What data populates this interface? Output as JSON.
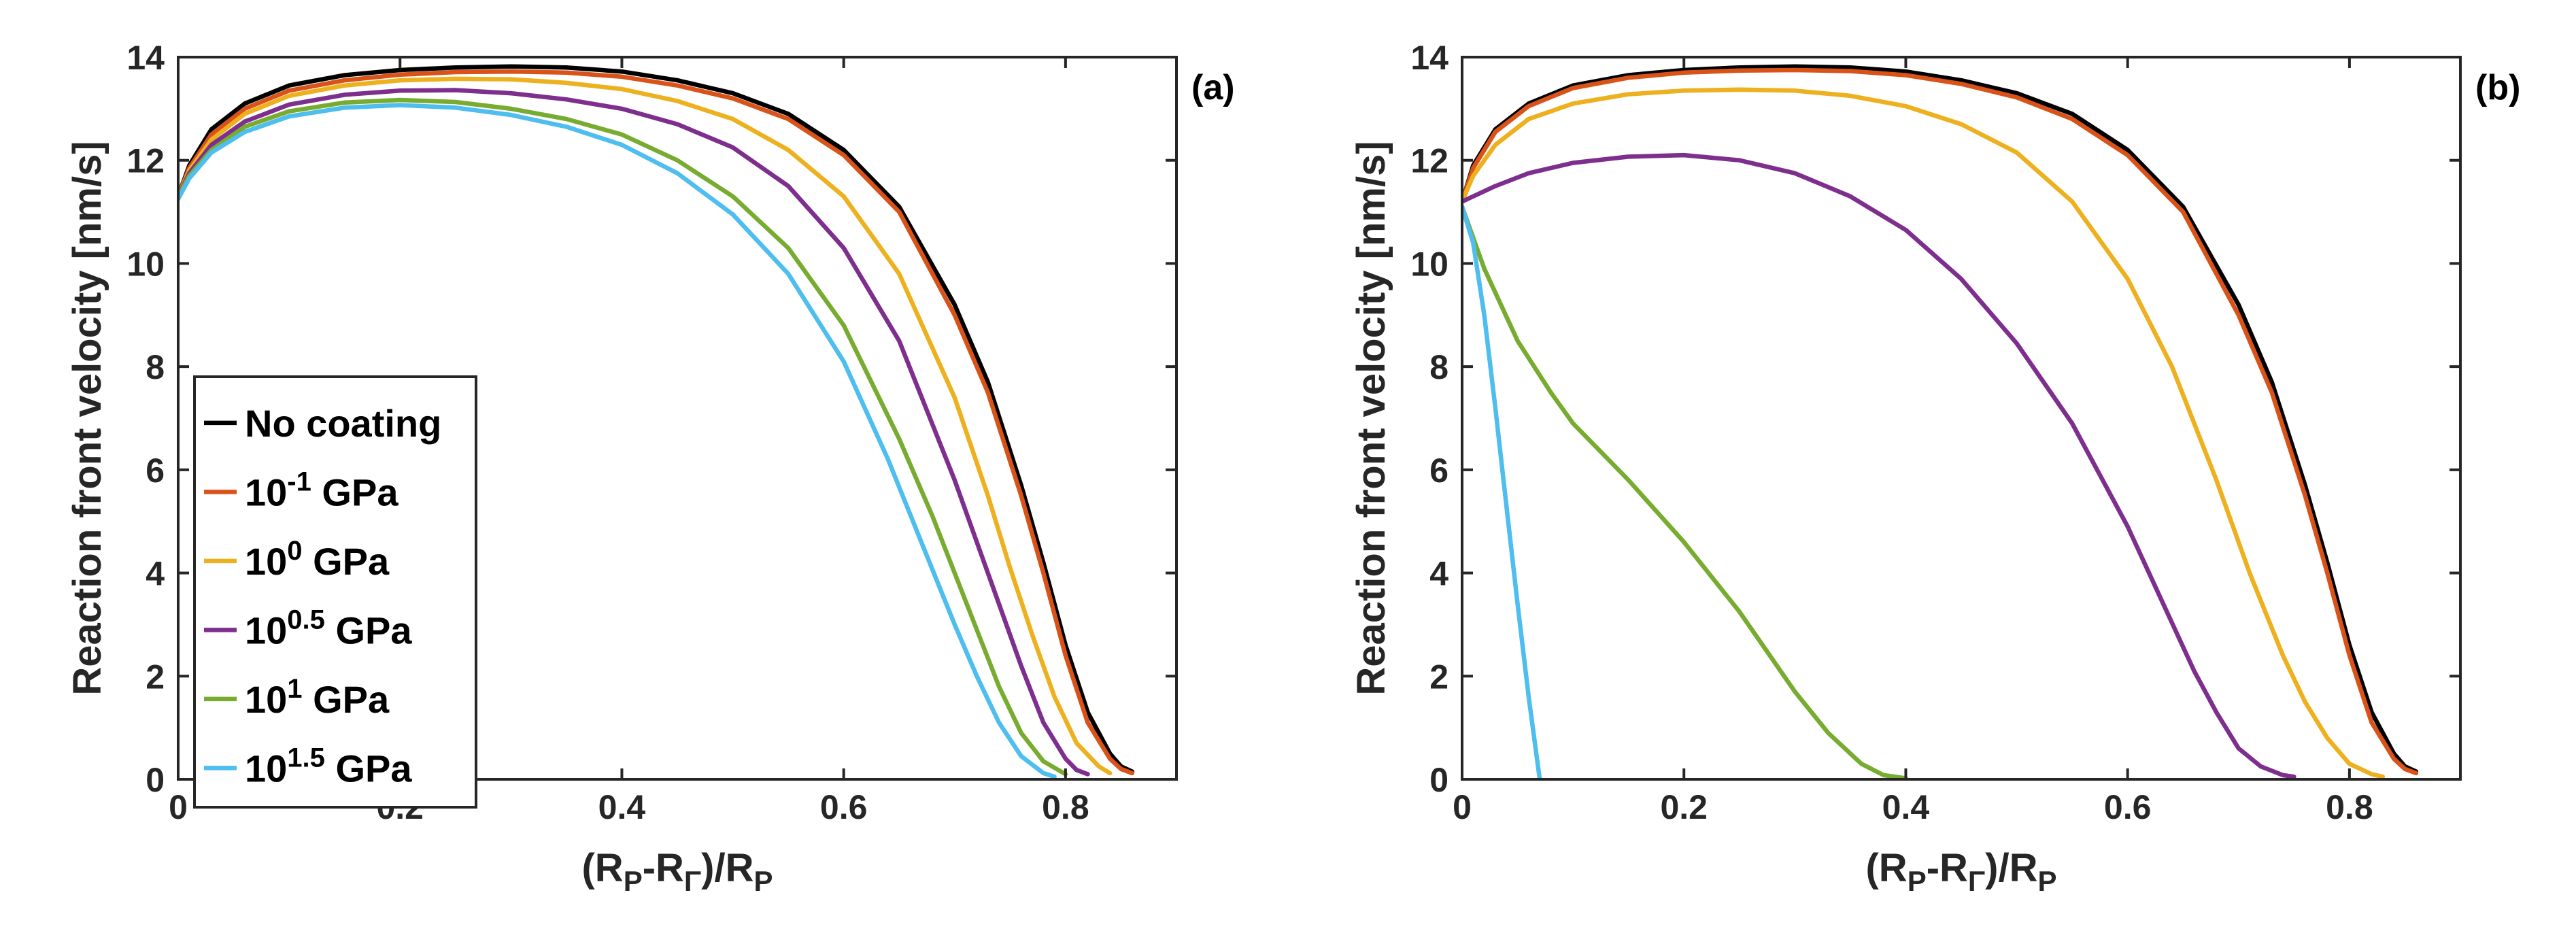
{
  "chart_data": [
    {
      "type": "line",
      "panel_label": "(a)",
      "xlabel": {
        "base": "(R",
        "sub1": "P",
        "mid": "-R",
        "sub2": "Γ",
        "mid2": ")/R",
        "sub3": "P"
      },
      "ylabel": "Reaction front velocity [nm/s]",
      "xlim": [
        0,
        0.9
      ],
      "ylim": [
        0,
        14
      ],
      "xticks": [
        0,
        0.2,
        0.4,
        0.6,
        0.8
      ],
      "xtick_labels": [
        "0",
        "0.2",
        "0.4",
        "0.6",
        "0.8"
      ],
      "yticks": [
        0,
        2,
        4,
        6,
        8,
        10,
        12,
        14
      ],
      "ytick_labels": [
        "0",
        "2",
        "4",
        "6",
        "8",
        "10",
        "12",
        "14"
      ],
      "legend_position": "bottom-left",
      "series": [
        {
          "name": "No coating",
          "label_base": "No coating",
          "label_sup": "",
          "label_unit": "",
          "color": "#000000",
          "x": [
            0,
            0.01,
            0.03,
            0.06,
            0.1,
            0.15,
            0.2,
            0.25,
            0.3,
            0.35,
            0.4,
            0.45,
            0.5,
            0.55,
            0.6,
            0.65,
            0.7,
            0.73,
            0.76,
            0.78,
            0.8,
            0.82,
            0.84,
            0.85,
            0.86
          ],
          "y": [
            11.3,
            11.9,
            12.6,
            13.1,
            13.45,
            13.65,
            13.75,
            13.8,
            13.82,
            13.8,
            13.72,
            13.55,
            13.3,
            12.9,
            12.2,
            11.1,
            9.2,
            7.7,
            5.7,
            4.2,
            2.6,
            1.3,
            0.5,
            0.25,
            0.15
          ]
        },
        {
          "name": "10^-1 GPa",
          "label_base": "10",
          "label_sup": "-1",
          "label_unit": " GPa",
          "color": "#D95319",
          "x": [
            0,
            0.01,
            0.03,
            0.06,
            0.1,
            0.15,
            0.2,
            0.25,
            0.3,
            0.35,
            0.4,
            0.45,
            0.5,
            0.55,
            0.6,
            0.65,
            0.7,
            0.73,
            0.76,
            0.78,
            0.8,
            0.82,
            0.84,
            0.85,
            0.86
          ],
          "y": [
            11.3,
            11.85,
            12.5,
            13.0,
            13.35,
            13.55,
            13.66,
            13.71,
            13.72,
            13.7,
            13.62,
            13.45,
            13.2,
            12.8,
            12.1,
            11.0,
            9.0,
            7.5,
            5.5,
            4.0,
            2.4,
            1.1,
            0.4,
            0.2,
            0.12
          ]
        },
        {
          "name": "10^0 GPa",
          "label_base": "10",
          "label_sup": "0",
          "label_unit": " GPa",
          "color": "#EDB120",
          "x": [
            0,
            0.01,
            0.03,
            0.06,
            0.1,
            0.15,
            0.2,
            0.25,
            0.3,
            0.35,
            0.4,
            0.45,
            0.5,
            0.55,
            0.6,
            0.65,
            0.7,
            0.73,
            0.75,
            0.77,
            0.79,
            0.81,
            0.83,
            0.84
          ],
          "y": [
            11.3,
            11.8,
            12.4,
            12.9,
            13.25,
            13.45,
            13.55,
            13.58,
            13.57,
            13.5,
            13.38,
            13.15,
            12.8,
            12.2,
            11.3,
            9.8,
            7.4,
            5.5,
            4.1,
            2.8,
            1.6,
            0.7,
            0.25,
            0.12
          ]
        },
        {
          "name": "10^0.5 GPa",
          "label_base": "10",
          "label_sup": "0.5",
          "label_unit": " GPa",
          "color": "#7E2F8E",
          "x": [
            0,
            0.01,
            0.03,
            0.06,
            0.1,
            0.15,
            0.2,
            0.25,
            0.3,
            0.35,
            0.4,
            0.45,
            0.5,
            0.55,
            0.6,
            0.65,
            0.7,
            0.72,
            0.74,
            0.76,
            0.78,
            0.8,
            0.81,
            0.82
          ],
          "y": [
            11.3,
            11.75,
            12.3,
            12.75,
            13.08,
            13.27,
            13.35,
            13.36,
            13.3,
            13.18,
            13.0,
            12.7,
            12.25,
            11.5,
            10.3,
            8.5,
            5.8,
            4.6,
            3.4,
            2.2,
            1.1,
            0.4,
            0.18,
            0.1
          ]
        },
        {
          "name": "10^1 GPa",
          "label_base": "10",
          "label_sup": "1",
          "label_unit": " GPa",
          "color": "#77AC30",
          "x": [
            0,
            0.01,
            0.03,
            0.06,
            0.1,
            0.15,
            0.2,
            0.25,
            0.3,
            0.35,
            0.4,
            0.45,
            0.5,
            0.55,
            0.6,
            0.65,
            0.68,
            0.7,
            0.72,
            0.74,
            0.76,
            0.78,
            0.8
          ],
          "y": [
            11.3,
            11.7,
            12.2,
            12.65,
            12.95,
            13.12,
            13.17,
            13.13,
            13.0,
            12.8,
            12.5,
            12.0,
            11.3,
            10.3,
            8.8,
            6.6,
            5.1,
            4.0,
            2.9,
            1.8,
            0.9,
            0.35,
            0.1
          ]
        },
        {
          "name": "10^1.5 GPa",
          "label_base": "10",
          "label_sup": "1.5",
          "label_unit": " GPa",
          "color": "#4DBEEE",
          "x": [
            0,
            0.01,
            0.03,
            0.06,
            0.1,
            0.15,
            0.2,
            0.25,
            0.3,
            0.35,
            0.4,
            0.45,
            0.5,
            0.55,
            0.6,
            0.64,
            0.67,
            0.7,
            0.72,
            0.74,
            0.76,
            0.78,
            0.79
          ],
          "y": [
            11.25,
            11.65,
            12.15,
            12.55,
            12.85,
            13.02,
            13.07,
            13.02,
            12.88,
            12.65,
            12.3,
            11.75,
            10.95,
            9.8,
            8.1,
            6.2,
            4.6,
            3.0,
            2.0,
            1.1,
            0.45,
            0.12,
            0.05
          ]
        }
      ]
    },
    {
      "type": "line",
      "panel_label": "(b)",
      "xlabel": {
        "base": "(R",
        "sub1": "P",
        "mid": "-R",
        "sub2": "Γ",
        "mid2": ")/R",
        "sub3": "P"
      },
      "ylabel": "Reaction front velocity [nm/s]",
      "xlim": [
        0,
        0.9
      ],
      "ylim": [
        0,
        14
      ],
      "xticks": [
        0,
        0.2,
        0.4,
        0.6,
        0.8
      ],
      "xtick_labels": [
        "0",
        "0.2",
        "0.4",
        "0.6",
        "0.8"
      ],
      "yticks": [
        0,
        2,
        4,
        6,
        8,
        10,
        12,
        14
      ],
      "ytick_labels": [
        "0",
        "2",
        "4",
        "6",
        "8",
        "10",
        "12",
        "14"
      ],
      "series": [
        {
          "name": "No coating",
          "color": "#000000",
          "x": [
            0,
            0.01,
            0.03,
            0.06,
            0.1,
            0.15,
            0.2,
            0.25,
            0.3,
            0.35,
            0.4,
            0.45,
            0.5,
            0.55,
            0.6,
            0.65,
            0.7,
            0.73,
            0.76,
            0.78,
            0.8,
            0.82,
            0.84,
            0.85,
            0.86
          ],
          "y": [
            11.2,
            11.9,
            12.6,
            13.1,
            13.45,
            13.65,
            13.75,
            13.8,
            13.82,
            13.8,
            13.72,
            13.55,
            13.3,
            12.9,
            12.2,
            11.1,
            9.2,
            7.7,
            5.7,
            4.2,
            2.6,
            1.3,
            0.5,
            0.25,
            0.15
          ]
        },
        {
          "name": "10^-1 GPa",
          "color": "#D95319",
          "x": [
            0,
            0.01,
            0.03,
            0.06,
            0.1,
            0.15,
            0.2,
            0.25,
            0.3,
            0.35,
            0.4,
            0.45,
            0.5,
            0.55,
            0.6,
            0.65,
            0.7,
            0.73,
            0.76,
            0.78,
            0.8,
            0.82,
            0.84,
            0.85,
            0.86
          ],
          "y": [
            11.2,
            11.85,
            12.55,
            13.05,
            13.4,
            13.6,
            13.7,
            13.74,
            13.75,
            13.73,
            13.65,
            13.48,
            13.22,
            12.8,
            12.1,
            11.0,
            9.0,
            7.5,
            5.5,
            4.0,
            2.4,
            1.1,
            0.4,
            0.2,
            0.12
          ]
        },
        {
          "name": "10^0 GPa",
          "color": "#EDB120",
          "x": [
            0,
            0.01,
            0.03,
            0.06,
            0.1,
            0.15,
            0.2,
            0.25,
            0.3,
            0.35,
            0.4,
            0.45,
            0.5,
            0.55,
            0.6,
            0.64,
            0.68,
            0.71,
            0.74,
            0.76,
            0.78,
            0.8,
            0.82,
            0.83
          ],
          "y": [
            11.2,
            11.7,
            12.3,
            12.8,
            13.1,
            13.28,
            13.35,
            13.37,
            13.35,
            13.25,
            13.05,
            12.7,
            12.15,
            11.2,
            9.7,
            8.0,
            5.8,
            4.0,
            2.4,
            1.5,
            0.8,
            0.3,
            0.1,
            0.05
          ]
        },
        {
          "name": "10^0.5 GPa",
          "color": "#7E2F8E",
          "x": [
            0,
            0.03,
            0.06,
            0.1,
            0.15,
            0.2,
            0.25,
            0.3,
            0.35,
            0.4,
            0.45,
            0.5,
            0.55,
            0.6,
            0.63,
            0.66,
            0.68,
            0.7,
            0.72,
            0.74,
            0.75
          ],
          "y": [
            11.2,
            11.5,
            11.75,
            11.95,
            12.07,
            12.1,
            12.0,
            11.75,
            11.3,
            10.65,
            9.7,
            8.45,
            6.9,
            4.9,
            3.5,
            2.1,
            1.3,
            0.6,
            0.25,
            0.08,
            0.05
          ]
        },
        {
          "name": "10^1 GPa",
          "color": "#77AC30",
          "x": [
            0,
            0.02,
            0.05,
            0.08,
            0.1,
            0.15,
            0.2,
            0.25,
            0.3,
            0.33,
            0.36,
            0.38,
            0.4
          ],
          "y": [
            11.1,
            9.9,
            8.5,
            7.5,
            6.9,
            5.8,
            4.6,
            3.25,
            1.7,
            0.9,
            0.3,
            0.08,
            0.02
          ]
        },
        {
          "name": "10^1.5 GPa",
          "color": "#4DBEEE",
          "x": [
            0,
            0.01,
            0.02,
            0.03,
            0.04,
            0.05,
            0.06,
            0.07
          ],
          "y": [
            11.1,
            10.4,
            9.0,
            7.2,
            5.3,
            3.4,
            1.6,
            0.0
          ]
        }
      ]
    }
  ]
}
